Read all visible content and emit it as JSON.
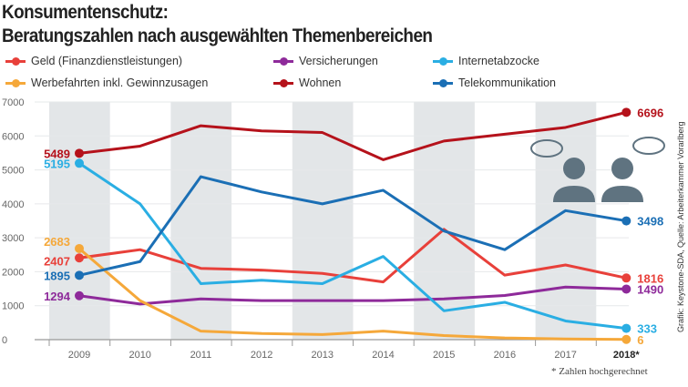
{
  "title_line1": "Konsumentenschutz:",
  "title_line2": "Beratungszahlen nach ausgewählten Themenbereichen",
  "source": "Grafik: Keystone-SDA, Quelle: Arbeiterkammer Vorarlberg",
  "footnote": "* Zahlen hochgerechnet",
  "chart_data": {
    "type": "line",
    "categories": [
      "2009",
      "2010",
      "2011",
      "2012",
      "2013",
      "2014",
      "2015",
      "2016",
      "2017",
      "2018*"
    ],
    "ylim": [
      0,
      7000
    ],
    "yticks": [
      "0",
      "1000",
      "2000",
      "3000",
      "4000",
      "5000",
      "6000",
      "7000"
    ],
    "grid": true,
    "legend_placement": "top",
    "series": [
      {
        "name": "Geld (Finanzdienstleistungen)",
        "color": "#e8403a",
        "values": [
          2407,
          2650,
          2100,
          2050,
          1950,
          1700,
          3250,
          1900,
          2200,
          1816
        ],
        "start_label": "2407",
        "end_label": "1816"
      },
      {
        "name": "Versicherungen",
        "color": "#8e2a9a",
        "values": [
          1294,
          1050,
          1200,
          1150,
          1150,
          1150,
          1200,
          1300,
          1550,
          1490
        ],
        "start_label": "1294",
        "end_label": "1490"
      },
      {
        "name": "Internetabzocke",
        "color": "#2aaee3",
        "values": [
          5195,
          4000,
          1650,
          1750,
          1650,
          2450,
          850,
          1100,
          550,
          333
        ],
        "start_label": "5195",
        "end_label": "333"
      },
      {
        "name": "Werbefahrten inkl. Gewinnzusagen",
        "color": "#f5a83a",
        "values": [
          2683,
          1150,
          250,
          180,
          150,
          250,
          120,
          50,
          20,
          6
        ],
        "start_label": "2683",
        "end_label": "6"
      },
      {
        "name": "Wohnen",
        "color": "#b5121b",
        "values": [
          5489,
          5700,
          6300,
          6150,
          6100,
          5300,
          5850,
          6050,
          6250,
          6696
        ],
        "start_label": "5489",
        "end_label": "6696"
      },
      {
        "name": "Telekommunikation",
        "color": "#1b6fb5",
        "values": [
          1895,
          2300,
          4800,
          4350,
          4000,
          4400,
          3200,
          2650,
          3800,
          3498
        ],
        "start_label": "1895",
        "end_label": "3498"
      }
    ]
  }
}
